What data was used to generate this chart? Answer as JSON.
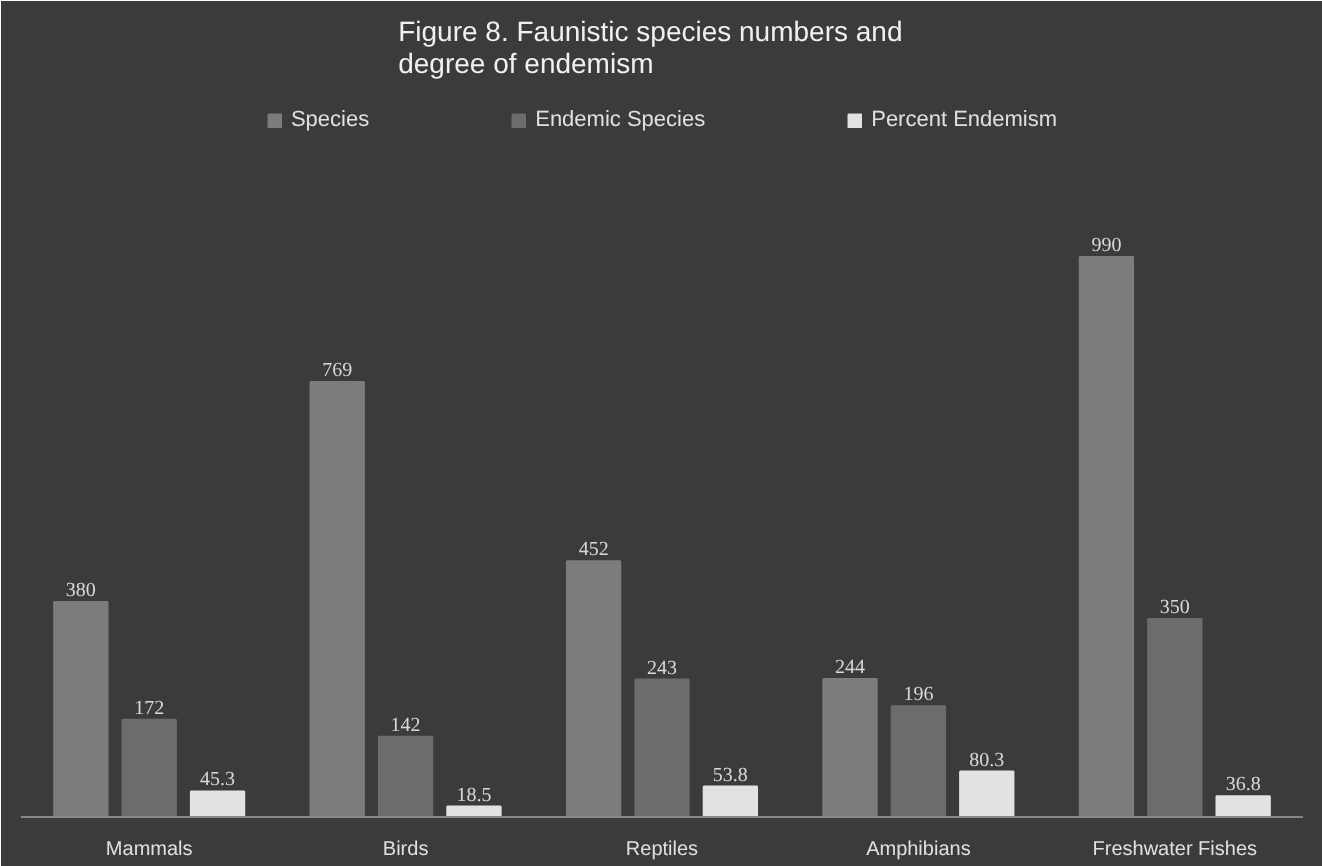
{
  "chart_data": {
    "type": "bar",
    "title": "Figure 8.    Faunistic species numbers and degree of endemism",
    "categories": [
      "Mammals",
      "Birds",
      "Reptiles",
      "Amphibians",
      "Freshwater Fishes"
    ],
    "series": [
      {
        "name": "Species",
        "color": "#7c7c7c",
        "values": [
          380,
          769,
          452,
          244,
          990
        ]
      },
      {
        "name": "Endemic Species",
        "color": "#6c6c6c",
        "values": [
          172,
          142,
          243,
          196,
          350
        ]
      },
      {
        "name": "Percent Endemism",
        "color": "#e2e2e2",
        "values": [
          45.3,
          18.5,
          53.8,
          80.3,
          36.8
        ]
      }
    ],
    "data_labels": true,
    "legend": "top",
    "grid": false
  }
}
